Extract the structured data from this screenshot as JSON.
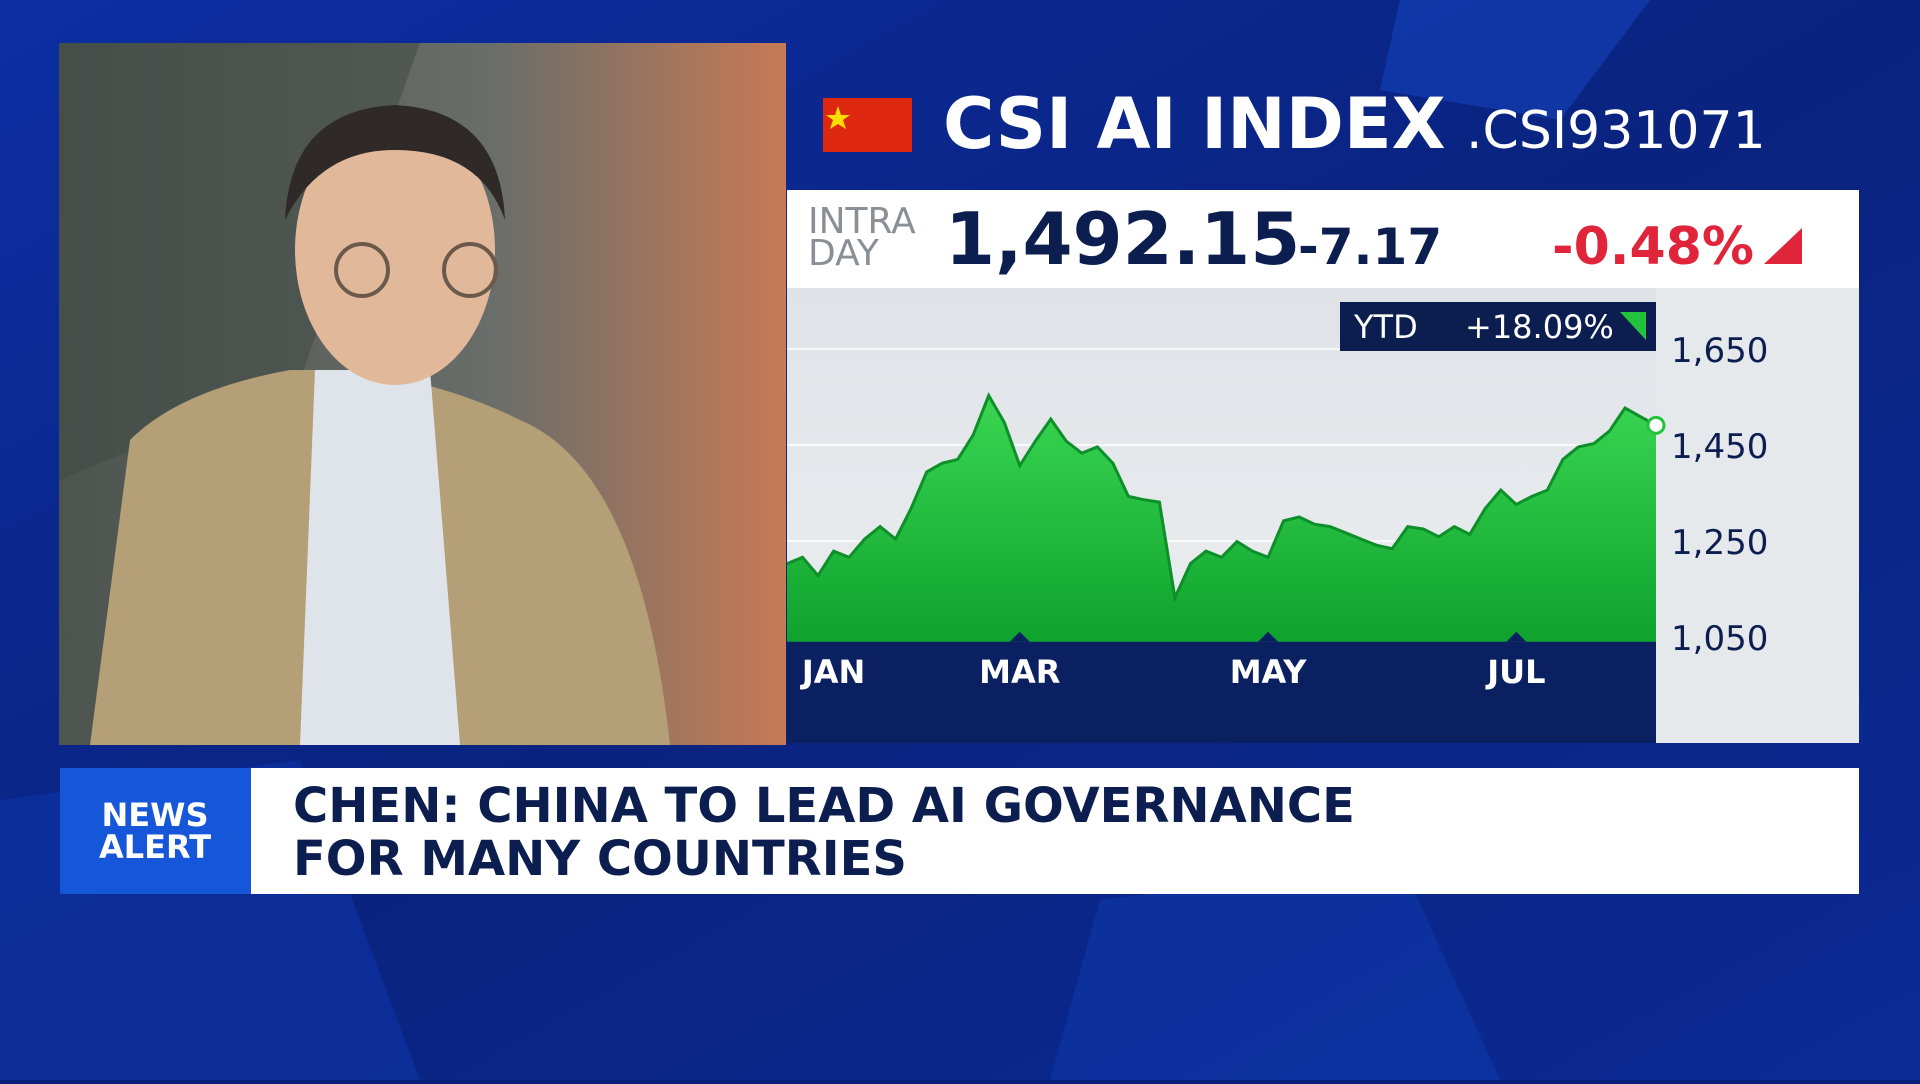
{
  "header": {
    "title": "CSI AI INDEX",
    "symbol": ".CSI931071"
  },
  "quote": {
    "session_label": [
      "INTRA",
      "DAY"
    ],
    "last": "1,492.15",
    "change": "-7.17",
    "change_pct": "-0.48%"
  },
  "ytd": {
    "label": "YTD",
    "value": "+18.09%"
  },
  "chart_data": {
    "type": "area",
    "color": "#22c23c",
    "categories": [
      null,
      null,
      null,
      "JAN",
      null,
      null,
      null,
      null,
      null,
      null,
      null,
      null,
      null,
      null,
      null,
      "MAR",
      null,
      null,
      null,
      null,
      null,
      null,
      null,
      null,
      null,
      null,
      null,
      null,
      null,
      null,
      null,
      "MAY",
      null,
      null,
      null,
      null,
      null,
      null,
      null,
      null,
      null,
      null,
      null,
      null,
      null,
      null,
      null,
      "JUL",
      null,
      null,
      null,
      null,
      null,
      null,
      null,
      null,
      null
    ],
    "values": [
      1203,
      1216,
      1178,
      1229,
      1216,
      1254,
      1280,
      1254,
      1318,
      1394,
      1412,
      1420,
      1471,
      1553,
      1497,
      1407,
      1458,
      1504,
      1458,
      1433,
      1446,
      1412,
      1343,
      1336,
      1331,
      1132,
      1203,
      1229,
      1216,
      1249,
      1229,
      1216,
      1292,
      1300,
      1285,
      1280,
      1267,
      1254,
      1241,
      1234,
      1280,
      1275,
      1259,
      1280,
      1264,
      1318,
      1356,
      1326,
      1343,
      1356,
      1420,
      1446,
      1453,
      1479,
      1527,
      1509,
      1491
    ],
    "ylim": [
      1040,
      1750
    ],
    "yticks": [
      {
        "value": 1050,
        "label": "1,050"
      },
      {
        "value": 1250,
        "label": "1,250"
      },
      {
        "value": 1450,
        "label": "1,450"
      },
      {
        "value": 1650,
        "label": "1,650"
      }
    ],
    "grid": true
  },
  "ticker": {
    "badge": [
      "NEWS",
      "ALERT"
    ],
    "headline": [
      "CHEN: CHINA TO LEAD AI GOVERNANCE",
      "FOR MANY COUNTRIES"
    ]
  }
}
